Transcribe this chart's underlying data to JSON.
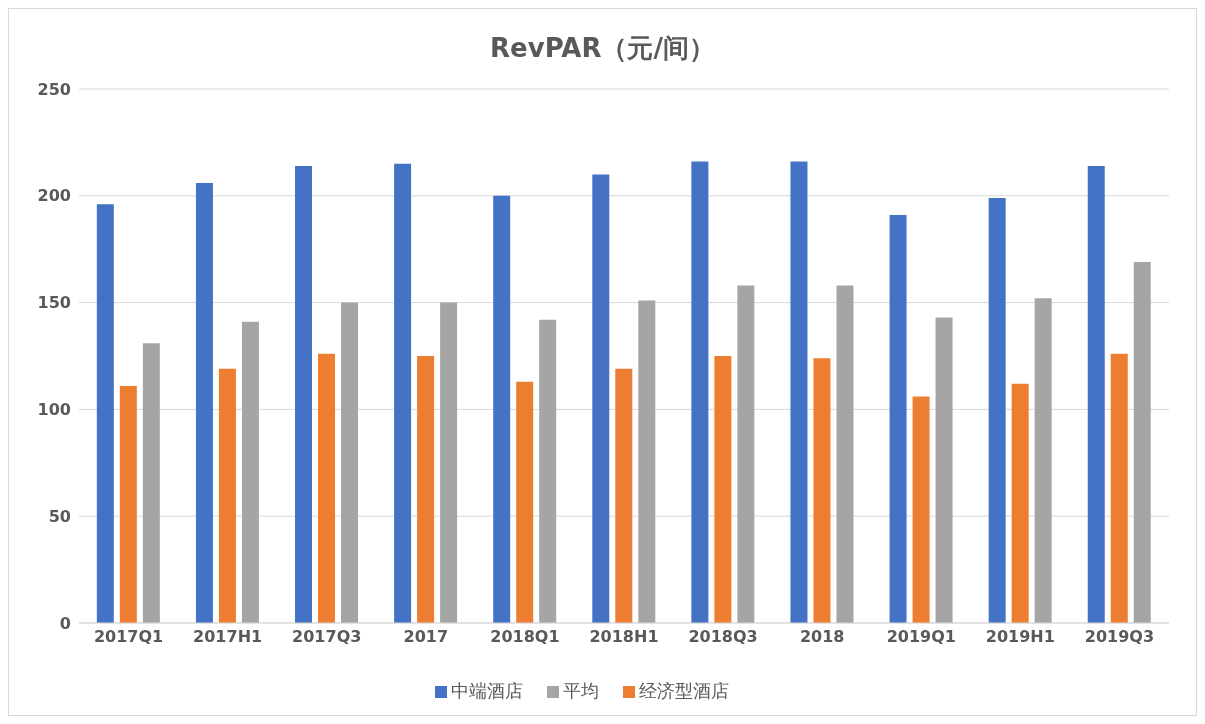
{
  "chart_data": {
    "type": "bar",
    "title": "RevPAR（元/间）",
    "categories": [
      "2017Q1",
      "2017H1",
      "2017Q3",
      "2017",
      "2018Q1",
      "2018H1",
      "2018Q3",
      "2018",
      "2019Q1",
      "2019H1",
      "2019Q3"
    ],
    "series": [
      {
        "name": "中端酒店",
        "color": "#4472c4",
        "values": [
          196,
          206,
          214,
          215,
          200,
          210,
          216,
          216,
          191,
          199,
          214
        ]
      },
      {
        "name": "经济型酒店",
        "color": "#ed7d31",
        "values": [
          111,
          119,
          126,
          125,
          113,
          119,
          125,
          124,
          106,
          112,
          126
        ]
      },
      {
        "name": "平均",
        "color": "#a5a5a5",
        "values": [
          131,
          141,
          150,
          150,
          142,
          151,
          158,
          158,
          143,
          152,
          169
        ]
      }
    ],
    "ylim": [
      0,
      250
    ],
    "yticks": [
      0,
      50,
      100,
      150,
      200,
      250
    ],
    "grid": "y",
    "legend": "bottom"
  }
}
